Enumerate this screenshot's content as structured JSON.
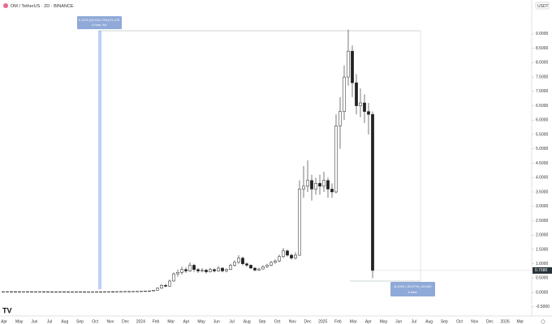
{
  "chart_data": {
    "type": "candlestick",
    "title": "OM / TetherUS · 2D · BINANCE",
    "currency": "USDT",
    "logo": "TV",
    "measure_up": {
      "line1": "9.1475 (53,026.73%) 91,475",
      "line2": "4 bars, 8d"
    },
    "measure_down": {
      "line1": "-8.4000 (-93.97%) -84,000",
      "line2": "6 bars"
    },
    "last_price": {
      "value": 0.768,
      "label": "0.7680"
    },
    "ylim": [
      -0.87,
      10.04
    ],
    "yticks": [
      {
        "value": -0.5,
        "label": "-0.5000"
      },
      {
        "value": 0,
        "label": "0.0000"
      },
      {
        "value": 0.5,
        "label": "0.5000"
      },
      {
        "value": 1,
        "label": "1.0000"
      },
      {
        "value": 1.5,
        "label": "1.5000"
      },
      {
        "value": 2,
        "label": "2.0000"
      },
      {
        "value": 2.5,
        "label": "2.5000"
      },
      {
        "value": 3,
        "label": "3.0000"
      },
      {
        "value": 3.5,
        "label": "3.5000"
      },
      {
        "value": 4,
        "label": "4.0000"
      },
      {
        "value": 4.5,
        "label": "4.5000"
      },
      {
        "value": 5,
        "label": "5.0000"
      },
      {
        "value": 5.5,
        "label": "5.5000"
      },
      {
        "value": 6,
        "label": "6.0000"
      },
      {
        "value": 6.5,
        "label": "6.5000"
      },
      {
        "value": 7,
        "label": "7.0000"
      },
      {
        "value": 7.5,
        "label": "7.5000"
      },
      {
        "value": 8,
        "label": "8.0000"
      },
      {
        "value": 8.5,
        "label": "8.5000"
      },
      {
        "value": 9,
        "label": "9.0000"
      }
    ],
    "xticks": [
      "Apr",
      "May",
      "Jun",
      "Jul",
      "Aug",
      "Sep",
      "Oct",
      "Nov",
      "Dec",
      "2024",
      "Feb",
      "Mar",
      "Apr",
      "May",
      "Jun",
      "Jul",
      "Aug",
      "Sep",
      "Oct",
      "Nov",
      "Dec",
      "2025",
      "Feb",
      "Mar",
      "Apr",
      "May",
      "Jun",
      "Jul",
      "Aug",
      "Sep",
      "Oct",
      "Nov",
      "Dec",
      "2026",
      "Mar"
    ],
    "candles": [
      [
        0.03,
        0.035,
        0.025,
        0.03
      ],
      [
        0.03,
        0.036,
        0.027,
        0.032
      ],
      [
        0.032,
        0.035,
        0.028,
        0.03
      ],
      [
        0.03,
        0.033,
        0.026,
        0.029
      ],
      [
        0.029,
        0.032,
        0.025,
        0.028
      ],
      [
        0.028,
        0.033,
        0.026,
        0.031
      ],
      [
        0.031,
        0.034,
        0.027,
        0.029
      ],
      [
        0.029,
        0.031,
        0.025,
        0.027
      ],
      [
        0.027,
        0.03,
        0.024,
        0.028
      ],
      [
        0.028,
        0.032,
        0.026,
        0.03
      ],
      [
        0.03,
        0.033,
        0.027,
        0.029
      ],
      [
        0.029,
        0.031,
        0.024,
        0.026
      ],
      [
        0.026,
        0.029,
        0.023,
        0.025
      ],
      [
        0.025,
        0.028,
        0.022,
        0.026
      ],
      [
        0.026,
        0.03,
        0.024,
        0.028
      ],
      [
        0.028,
        0.031,
        0.025,
        0.027
      ],
      [
        0.027,
        0.029,
        0.023,
        0.024
      ],
      [
        0.024,
        0.027,
        0.021,
        0.025
      ],
      [
        0.025,
        0.028,
        0.023,
        0.027
      ],
      [
        0.027,
        0.03,
        0.025,
        0.026
      ],
      [
        0.026,
        0.028,
        0.022,
        0.023
      ],
      [
        0.023,
        0.026,
        0.02,
        0.024
      ],
      [
        0.024,
        0.027,
        0.022,
        0.025
      ],
      [
        0.025,
        0.029,
        0.023,
        0.027
      ],
      [
        0.027,
        0.03,
        0.024,
        0.026
      ],
      [
        0.026,
        0.03,
        0.024,
        0.029
      ],
      [
        0.029,
        0.033,
        0.026,
        0.031
      ],
      [
        0.031,
        0.034,
        0.028,
        0.03
      ],
      [
        0.03,
        0.035,
        0.028,
        0.033
      ],
      [
        0.033,
        0.037,
        0.03,
        0.035
      ],
      [
        0.035,
        0.04,
        0.032,
        0.038
      ],
      [
        0.038,
        0.042,
        0.034,
        0.036
      ],
      [
        0.036,
        0.041,
        0.033,
        0.039
      ],
      [
        0.039,
        0.045,
        0.036,
        0.043
      ],
      [
        0.043,
        0.05,
        0.04,
        0.047
      ],
      [
        0.047,
        0.055,
        0.044,
        0.052
      ],
      [
        0.052,
        0.06,
        0.048,
        0.056
      ],
      [
        0.056,
        0.09,
        0.05,
        0.08
      ],
      [
        0.08,
        0.18,
        0.07,
        0.15
      ],
      [
        0.15,
        0.3,
        0.13,
        0.25
      ],
      [
        0.25,
        0.3,
        0.18,
        0.22
      ],
      [
        0.22,
        0.45,
        0.2,
        0.4
      ],
      [
        0.4,
        0.7,
        0.38,
        0.65
      ],
      [
        0.65,
        0.8,
        0.55,
        0.7
      ],
      [
        0.7,
        0.9,
        0.62,
        0.8
      ],
      [
        0.8,
        0.88,
        0.68,
        0.75
      ],
      [
        0.75,
        1.05,
        0.72,
        0.95
      ],
      [
        0.95,
        1.0,
        0.72,
        0.8
      ],
      [
        0.8,
        0.85,
        0.68,
        0.75
      ],
      [
        0.75,
        0.85,
        0.7,
        0.78
      ],
      [
        0.78,
        0.82,
        0.66,
        0.72
      ],
      [
        0.72,
        0.86,
        0.7,
        0.8
      ],
      [
        0.8,
        0.84,
        0.7,
        0.75
      ],
      [
        0.75,
        0.92,
        0.72,
        0.85
      ],
      [
        0.85,
        0.88,
        0.7,
        0.75
      ],
      [
        0.75,
        0.84,
        0.7,
        0.8
      ],
      [
        0.8,
        1.0,
        0.78,
        0.95
      ],
      [
        0.95,
        1.12,
        0.9,
        1.05
      ],
      [
        1.05,
        1.3,
        1.0,
        1.2
      ],
      [
        1.2,
        1.25,
        0.95,
        1.0
      ],
      [
        1.0,
        1.05,
        0.9,
        0.95
      ],
      [
        0.95,
        0.98,
        0.82,
        0.85
      ],
      [
        0.85,
        0.88,
        0.74,
        0.78
      ],
      [
        0.78,
        0.86,
        0.75,
        0.82
      ],
      [
        0.82,
        0.95,
        0.8,
        0.9
      ],
      [
        0.9,
        1.0,
        0.86,
        0.95
      ],
      [
        0.95,
        1.1,
        0.92,
        1.05
      ],
      [
        1.05,
        1.15,
        1.0,
        1.1
      ],
      [
        1.1,
        1.32,
        1.05,
        1.25
      ],
      [
        1.25,
        1.55,
        1.2,
        1.45
      ],
      [
        1.45,
        1.5,
        1.25,
        1.3
      ],
      [
        1.3,
        1.35,
        1.15,
        1.2
      ],
      [
        1.2,
        1.4,
        1.15,
        1.3
      ],
      [
        1.3,
        3.9,
        1.28,
        3.6
      ],
      [
        3.6,
        4.4,
        3.3,
        3.7
      ],
      [
        3.7,
        4.6,
        3.5,
        3.9
      ],
      [
        3.9,
        4.1,
        3.2,
        3.6
      ],
      [
        3.6,
        4.0,
        3.4,
        3.8
      ],
      [
        3.8,
        4.1,
        3.4,
        3.7
      ],
      [
        3.7,
        4.2,
        3.5,
        3.9
      ],
      [
        3.9,
        4.0,
        3.3,
        3.6
      ],
      [
        3.6,
        3.8,
        3.3,
        3.5
      ],
      [
        3.5,
        6.2,
        3.45,
        5.8
      ],
      [
        5.8,
        6.8,
        5.0,
        6.3
      ],
      [
        6.3,
        7.9,
        6.0,
        7.5
      ],
      [
        7.5,
        9.1475,
        7.2,
        8.4
      ],
      [
        8.4,
        8.6,
        6.8,
        7.3
      ],
      [
        7.3,
        7.6,
        6.2,
        6.5
      ],
      [
        6.5,
        7.1,
        6.1,
        6.6
      ],
      [
        6.6,
        6.9,
        5.9,
        6.3
      ],
      [
        6.3,
        6.6,
        5.5,
        6.2
      ],
      [
        6.2,
        6.3,
        0.5,
        0.768
      ]
    ]
  }
}
